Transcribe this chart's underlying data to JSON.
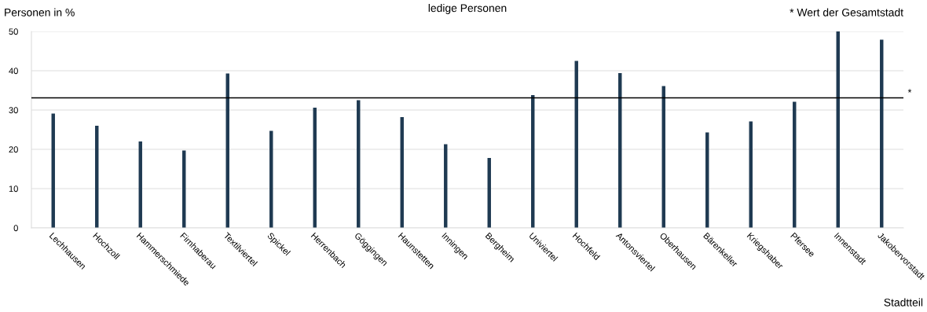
{
  "chart_data": {
    "type": "bar",
    "title": "ledige Personen",
    "ylabel": "Personen in %",
    "xlabel": "Stadtteil",
    "annotations": [
      "* Wert der Gesamtstadt"
    ],
    "categories": [
      "Lechhausen",
      "Hochzoll",
      "Hammerschmiede",
      "Firnhaberau",
      "Textilviertel",
      "Spickel",
      "Herrenbach",
      "Göggingen",
      "Haunstetten",
      "Inningen",
      "Bergheim",
      "Univiertel",
      "Hochfeld",
      "Antonsviertel",
      "Oberhausen",
      "Bärenkeller",
      "Kriegshaber",
      "Pfersee",
      "Innenstadt",
      "Jakobervorstadt"
    ],
    "values": [
      29.1,
      26.0,
      22.0,
      19.7,
      39.3,
      24.7,
      30.6,
      32.5,
      28.2,
      21.3,
      17.8,
      33.8,
      42.5,
      39.4,
      36.1,
      24.3,
      27.1,
      32.1,
      50.0,
      47.9
    ],
    "color": "#1f3a52",
    "ylim": [
      0,
      50
    ],
    "yticks": [
      0,
      10,
      20,
      30,
      40,
      50
    ],
    "grid": "y",
    "ref_lines": [
      {
        "axis": "y",
        "value": 33.1,
        "label": "*",
        "color": "#000000"
      }
    ]
  }
}
